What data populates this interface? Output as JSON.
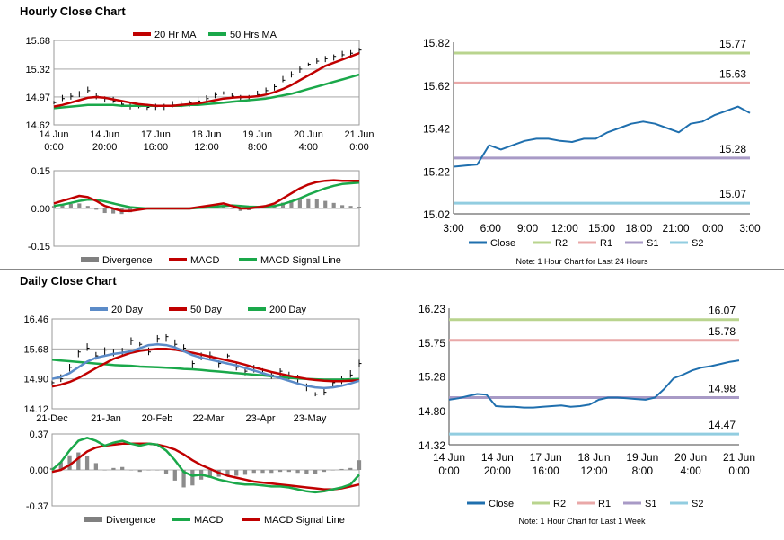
{
  "sections": {
    "hourly_title": "Hourly Close Chart",
    "daily_title": "Daily Close Chart"
  },
  "chart_data": [
    {
      "id": "hourly_price",
      "type": "line",
      "title": "",
      "legend": [
        {
          "name": "20 Hr MA",
          "color": "#c00000"
        },
        {
          "name": "50 Hrs MA",
          "color": "#1aa84a"
        }
      ],
      "xtick_labels": [
        [
          "14 Jun",
          "0:00"
        ],
        [
          "14 Jun",
          "20:00"
        ],
        [
          "17 Jun",
          "16:00"
        ],
        [
          "18 Jun",
          "12:00"
        ],
        [
          "19 Jun",
          "8:00"
        ],
        [
          "20 Jun",
          "4:00"
        ],
        [
          "21 Jun",
          "0:00"
        ]
      ],
      "yticks": [
        "15.68",
        "15.32",
        "14.97",
        "14.62"
      ],
      "ylim": [
        14.62,
        15.68
      ],
      "price": [
        14.9,
        14.95,
        14.98,
        15.02,
        15.05,
        14.98,
        14.95,
        14.92,
        14.88,
        14.86,
        14.85,
        14.84,
        14.85,
        14.86,
        14.87,
        14.88,
        14.9,
        14.92,
        14.95,
        15.0,
        15.02,
        14.98,
        14.96,
        14.97,
        15.0,
        15.05,
        15.1,
        15.18,
        15.25,
        15.32,
        15.38,
        15.42,
        15.45,
        15.48,
        15.5,
        15.52,
        15.56
      ],
      "ma20": [
        14.85,
        14.87,
        14.9,
        14.93,
        14.96,
        14.97,
        14.96,
        14.94,
        14.92,
        14.9,
        14.88,
        14.87,
        14.86,
        14.86,
        14.86,
        14.87,
        14.88,
        14.89,
        14.91,
        14.93,
        14.95,
        14.96,
        14.97,
        14.97,
        14.98,
        15.0,
        15.03,
        15.07,
        15.12,
        15.18,
        15.24,
        15.3,
        15.36,
        15.4,
        15.44,
        15.48,
        15.52
      ],
      "ma50": [
        14.83,
        14.84,
        14.85,
        14.86,
        14.87,
        14.87,
        14.87,
        14.87,
        14.86,
        14.86,
        14.86,
        14.86,
        14.86,
        14.86,
        14.86,
        14.86,
        14.87,
        14.87,
        14.88,
        14.89,
        14.9,
        14.91,
        14.92,
        14.93,
        14.94,
        14.95,
        14.97,
        14.99,
        15.01,
        15.04,
        15.07,
        15.1,
        15.13,
        15.16,
        15.19,
        15.22,
        15.25
      ]
    },
    {
      "id": "hourly_macd",
      "type": "line",
      "legend": [
        {
          "name": "Divergence",
          "color": "#808080"
        },
        {
          "name": "MACD",
          "color": "#c00000"
        },
        {
          "name": "MACD Signal Line",
          "color": "#1aa84a"
        }
      ],
      "yticks": [
        "0.15",
        "0.00",
        "-0.15"
      ],
      "ylim": [
        -0.15,
        0.15
      ],
      "macd": [
        0.02,
        0.03,
        0.04,
        0.05,
        0.045,
        0.03,
        0.01,
        0.0,
        -0.01,
        -0.01,
        -0.005,
        0.0,
        0.0,
        0.0,
        0.0,
        0.0,
        0.0,
        0.005,
        0.01,
        0.015,
        0.02,
        0.01,
        0.0,
        0.0,
        0.005,
        0.01,
        0.02,
        0.04,
        0.06,
        0.08,
        0.095,
        0.105,
        0.11,
        0.112,
        0.11,
        0.11,
        0.11
      ],
      "signal": [
        0.01,
        0.015,
        0.022,
        0.03,
        0.035,
        0.035,
        0.028,
        0.02,
        0.012,
        0.005,
        0.002,
        0.0,
        0.0,
        0.0,
        0.0,
        0.0,
        0.0,
        0.002,
        0.004,
        0.007,
        0.01,
        0.012,
        0.01,
        0.007,
        0.006,
        0.007,
        0.01,
        0.017,
        0.028,
        0.04,
        0.055,
        0.068,
        0.08,
        0.09,
        0.097,
        0.1,
        0.103
      ],
      "divergence": [
        0.01,
        0.015,
        0.018,
        0.02,
        0.01,
        -0.005,
        -0.018,
        -0.02,
        -0.022,
        -0.015,
        -0.007,
        0.0,
        0.0,
        0.0,
        0.0,
        0.0,
        0.0,
        0.003,
        0.006,
        0.008,
        0.01,
        -0.002,
        -0.01,
        -0.007,
        -0.001,
        0.003,
        0.01,
        0.023,
        0.032,
        0.04,
        0.04,
        0.037,
        0.03,
        0.022,
        0.013,
        0.01,
        0.007
      ]
    },
    {
      "id": "hourly_pivot",
      "type": "line",
      "yticks": [
        "15.82",
        "15.62",
        "15.42",
        "15.22",
        "15.02"
      ],
      "ylim": [
        15.02,
        15.82
      ],
      "xtick_labels": [
        "3:00",
        "6:00",
        "9:00",
        "12:00",
        "15:00",
        "18:00",
        "21:00",
        "0:00",
        "3:00"
      ],
      "close": [
        15.24,
        15.245,
        15.25,
        15.34,
        15.32,
        15.34,
        15.36,
        15.37,
        15.37,
        15.36,
        15.355,
        15.37,
        15.37,
        15.4,
        15.42,
        15.44,
        15.45,
        15.44,
        15.42,
        15.4,
        15.44,
        15.45,
        15.48,
        15.5,
        15.52,
        15.49
      ],
      "levels": [
        {
          "name": "R2",
          "value": 15.77,
          "label": "15.77",
          "color": "#b9d48e"
        },
        {
          "name": "R1",
          "value": 15.63,
          "label": "15.63",
          "color": "#e9a8a8"
        },
        {
          "name": "S1",
          "value": 15.28,
          "label": "15.28",
          "color": "#a89ac6"
        },
        {
          "name": "S2",
          "value": 15.07,
          "label": "15.07",
          "color": "#92cde0"
        }
      ],
      "legend": [
        "Close",
        "R2",
        "R1",
        "S1",
        "S2"
      ],
      "line_color": "#1f6fae",
      "note": "Note: 1 Hour Chart for Last 24 Hours"
    },
    {
      "id": "daily_price",
      "type": "line",
      "legend": [
        {
          "name": "20 Day",
          "color": "#5b8bc8"
        },
        {
          "name": "50 Day",
          "color": "#c00000"
        },
        {
          "name": "200 Day",
          "color": "#1aa84a"
        }
      ],
      "xtick_labels": [
        "21-Dec",
        "21-Jan",
        "20-Feb",
        "22-Mar",
        "23-Apr",
        "23-May"
      ],
      "yticks": [
        "16.46",
        "15.68",
        "14.90",
        "14.12"
      ],
      "ylim": [
        14.12,
        16.46
      ],
      "price": [
        14.8,
        14.9,
        15.2,
        15.6,
        15.7,
        15.5,
        15.65,
        15.55,
        15.6,
        15.9,
        15.8,
        15.6,
        15.95,
        16.0,
        15.8,
        15.7,
        15.3,
        15.45,
        15.5,
        15.3,
        15.5,
        15.2,
        15.1,
        15.2,
        15.05,
        15.0,
        15.1,
        14.95,
        14.9,
        14.7,
        14.5,
        14.55,
        14.8,
        14.9,
        15.0,
        15.3
      ],
      "d20": [
        14.9,
        14.95,
        15.05,
        15.2,
        15.35,
        15.45,
        15.5,
        15.55,
        15.58,
        15.62,
        15.7,
        15.78,
        15.8,
        15.78,
        15.72,
        15.62,
        15.52,
        15.45,
        15.4,
        15.35,
        15.3,
        15.25,
        15.18,
        15.12,
        15.05,
        14.98,
        14.92,
        14.85,
        14.78,
        14.72,
        14.68,
        14.66,
        14.68,
        14.72,
        14.78,
        14.85
      ],
      "d50": [
        14.7,
        14.75,
        14.82,
        14.92,
        15.05,
        15.18,
        15.3,
        15.42,
        15.5,
        15.58,
        15.63,
        15.66,
        15.68,
        15.68,
        15.66,
        15.62,
        15.58,
        15.53,
        15.48,
        15.43,
        15.38,
        15.33,
        15.27,
        15.2,
        15.14,
        15.08,
        15.03,
        14.98,
        14.94,
        14.9,
        14.87,
        14.85,
        14.84,
        14.84,
        14.85,
        14.86
      ],
      "d200": [
        15.4,
        15.38,
        15.36,
        15.34,
        15.32,
        15.3,
        15.28,
        15.26,
        15.25,
        15.24,
        15.22,
        15.21,
        15.2,
        15.19,
        15.18,
        15.16,
        15.15,
        15.13,
        15.11,
        15.09,
        15.07,
        15.05,
        15.03,
        15.01,
        14.99,
        14.97,
        14.95,
        14.93,
        14.91,
        14.9,
        14.89,
        14.88,
        14.88,
        14.88,
        14.89,
        14.9
      ]
    },
    {
      "id": "daily_macd",
      "type": "line",
      "legend": [
        {
          "name": "Divergence",
          "color": "#808080"
        },
        {
          "name": "MACD",
          "color": "#1aa84a"
        },
        {
          "name": "MACD Signal Line",
          "color": "#c00000"
        }
      ],
      "yticks": [
        "0.37",
        "0.00",
        "-0.37"
      ],
      "ylim": [
        -0.37,
        0.37
      ],
      "macd": [
        0.0,
        0.08,
        0.2,
        0.3,
        0.33,
        0.3,
        0.25,
        0.28,
        0.3,
        0.27,
        0.25,
        0.27,
        0.26,
        0.2,
        0.1,
        -0.02,
        -0.06,
        -0.05,
        -0.07,
        -0.1,
        -0.12,
        -0.14,
        -0.15,
        -0.15,
        -0.16,
        -0.17,
        -0.17,
        -0.18,
        -0.2,
        -0.22,
        -0.23,
        -0.22,
        -0.2,
        -0.18,
        -0.15,
        -0.05
      ],
      "signal": [
        -0.02,
        0.0,
        0.05,
        0.12,
        0.19,
        0.23,
        0.25,
        0.26,
        0.27,
        0.27,
        0.27,
        0.27,
        0.26,
        0.24,
        0.21,
        0.16,
        0.1,
        0.05,
        0.01,
        -0.03,
        -0.06,
        -0.08,
        -0.1,
        -0.12,
        -0.13,
        -0.14,
        -0.15,
        -0.16,
        -0.17,
        -0.18,
        -0.19,
        -0.2,
        -0.2,
        -0.19,
        -0.17,
        -0.15
      ],
      "divergence": [
        0.02,
        0.08,
        0.15,
        0.18,
        0.14,
        0.07,
        0.0,
        0.02,
        0.03,
        0.0,
        -0.02,
        0.0,
        0.0,
        -0.04,
        -0.11,
        -0.18,
        -0.16,
        -0.1,
        -0.08,
        -0.07,
        -0.06,
        -0.06,
        -0.05,
        -0.03,
        -0.03,
        -0.03,
        -0.02,
        -0.02,
        -0.03,
        -0.04,
        -0.04,
        -0.02,
        0.0,
        0.01,
        0.02,
        0.1
      ]
    },
    {
      "id": "daily_pivot",
      "type": "line",
      "yticks": [
        "16.23",
        "15.75",
        "15.28",
        "14.80",
        "14.32"
      ],
      "ylim": [
        14.32,
        16.23
      ],
      "xtick_labels": [
        [
          "14 Jun",
          "0:00"
        ],
        [
          "14 Jun",
          "20:00"
        ],
        [
          "17 Jun",
          "16:00"
        ],
        [
          "18 Jun",
          "12:00"
        ],
        [
          "19 Jun",
          "8:00"
        ],
        [
          "20 Jun",
          "4:00"
        ],
        [
          "21 Jun",
          "0:00"
        ]
      ],
      "close": [
        14.95,
        14.97,
        15.0,
        15.03,
        15.02,
        14.86,
        14.85,
        14.85,
        14.84,
        14.84,
        14.85,
        14.86,
        14.87,
        14.85,
        14.86,
        14.88,
        14.95,
        14.98,
        14.98,
        14.97,
        14.96,
        14.95,
        14.98,
        15.1,
        15.25,
        15.3,
        15.36,
        15.4,
        15.42,
        15.45,
        15.48,
        15.5
      ],
      "levels": [
        {
          "name": "R2",
          "value": 16.07,
          "label": "16.07",
          "color": "#b9d48e"
        },
        {
          "name": "R1",
          "value": 15.78,
          "label": "15.78",
          "color": "#e9a8a8"
        },
        {
          "name": "S1",
          "value": 14.98,
          "label": "14.98",
          "color": "#a89ac6"
        },
        {
          "name": "S2",
          "value": 14.47,
          "label": "14.47",
          "color": "#92cde0"
        }
      ],
      "legend": [
        "Close",
        "R2",
        "R1",
        "S1",
        "S2"
      ],
      "line_color": "#1f6fae",
      "note": "Note: 1 Hour Chart for Last 1 Week"
    }
  ]
}
